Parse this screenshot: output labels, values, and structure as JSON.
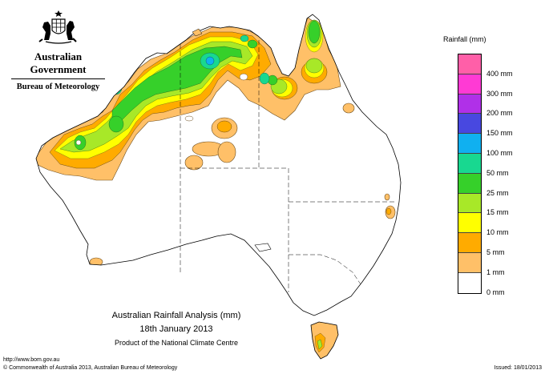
{
  "header": {
    "government": "Australian Government",
    "bureau": "Bureau of Meteorology"
  },
  "legend": {
    "title": "Rainfall (mm)",
    "items": [
      {
        "label": "",
        "color": "#ff5fa8"
      },
      {
        "label": "400 mm",
        "color": "#ff3ad4"
      },
      {
        "label": "300 mm",
        "color": "#b030e8"
      },
      {
        "label": "200 mm",
        "color": "#4848e0"
      },
      {
        "label": "150 mm",
        "color": "#10b0f0"
      },
      {
        "label": "100 mm",
        "color": "#18d890"
      },
      {
        "label": "50 mm",
        "color": "#36d02a"
      },
      {
        "label": "25 mm",
        "color": "#a8e828"
      },
      {
        "label": "15 mm",
        "color": "#ffff00"
      },
      {
        "label": "10 mm",
        "color": "#ffab00"
      },
      {
        "label": "5 mm",
        "color": "#ffc068"
      },
      {
        "label": "1 mm",
        "color": "#ffffff"
      },
      {
        "label": "0 mm",
        "color": ""
      }
    ]
  },
  "caption": {
    "title": "Australian Rainfall Analysis (mm)",
    "date": "18th January 2013",
    "product": "Product of the National Climate Centre"
  },
  "footer": {
    "url": "http://www.bom.gov.au",
    "copyright": "© Commonwealth of Australia 2013, Australian Bureau of Meteorology",
    "issued": "Issued: 18/01/2013"
  },
  "colors": {
    "band_1mm": "#ffc068",
    "band_5mm": "#ffab00",
    "band_10mm": "#ffff00",
    "band_15mm": "#a8e828",
    "band_25mm": "#36d02a",
    "band_50mm": "#18d890",
    "band_100mm": "#10b0f0",
    "band_150mm": "#4848e0"
  }
}
